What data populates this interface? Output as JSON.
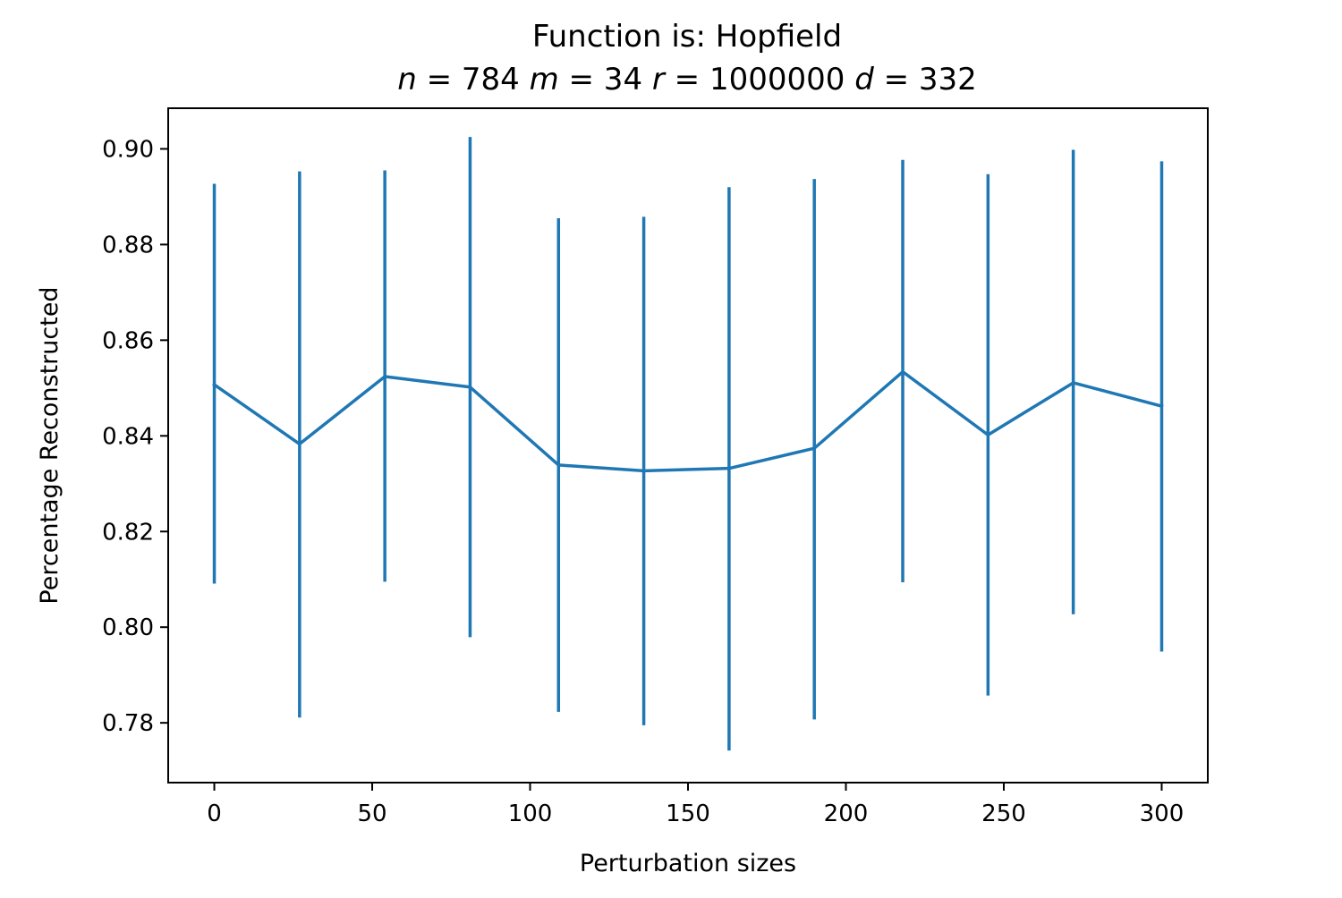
{
  "chart_data": {
    "type": "line",
    "title": "Function is: Hopfield",
    "subtitle": {
      "parts": [
        {
          "var": "n",
          "value": "784"
        },
        {
          "var": "m",
          "value": "34"
        },
        {
          "var": "r",
          "value": "1000000"
        },
        {
          "var": "d",
          "value": "332"
        }
      ]
    },
    "xlabel": "Perturbation sizes",
    "ylabel": "Percentage Reconstructed",
    "xlim": [
      -14.6,
      314.6
    ],
    "ylim": [
      0.7675,
      0.9085
    ],
    "xticks": [
      0,
      50,
      100,
      150,
      200,
      250,
      300
    ],
    "xtick_labels": [
      "0",
      "50",
      "100",
      "150",
      "200",
      "250",
      "300"
    ],
    "yticks": [
      0.78,
      0.8,
      0.82,
      0.84,
      0.86,
      0.88,
      0.9
    ],
    "ytick_labels": [
      "0.78",
      "0.80",
      "0.82",
      "0.84",
      "0.86",
      "0.88",
      "0.90"
    ],
    "grid": false,
    "series": [
      {
        "color": "#1f77b4",
        "x": [
          0,
          27,
          54,
          81,
          109,
          136,
          163,
          190,
          218,
          245,
          272,
          300
        ],
        "y": [
          0.8507,
          0.8383,
          0.8524,
          0.8502,
          0.8339,
          0.8327,
          0.8332,
          0.8374,
          0.8534,
          0.8402,
          0.8511,
          0.8462
        ],
        "err_low": [
          0.8091,
          0.7811,
          0.8095,
          0.7979,
          0.7823,
          0.7795,
          0.7742,
          0.7807,
          0.8094,
          0.7857,
          0.8027,
          0.7949
        ],
        "err_high": [
          0.8927,
          0.8953,
          0.8955,
          0.9025,
          0.8855,
          0.8858,
          0.892,
          0.8937,
          0.8977,
          0.8947,
          0.8998,
          0.8974
        ]
      }
    ]
  }
}
